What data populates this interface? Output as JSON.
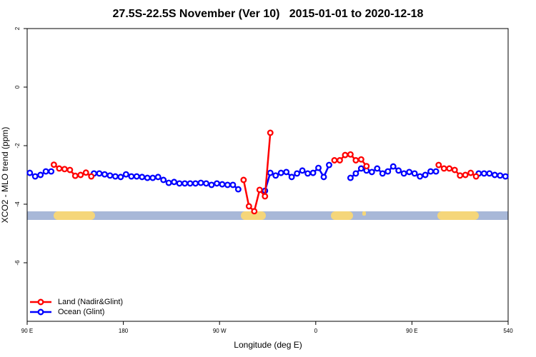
{
  "chart_data": {
    "type": "line",
    "title": "27.5S-22.5S November (Ver 10)   2015-01-01 to 2020-12-18",
    "x_label": "Longitude (deg E)",
    "y_label": "XCO2 - MLO trend (ppm)",
    "xlim": [
      90,
      540
    ],
    "xticks": [
      {
        "value": 90,
        "label": "90 E"
      },
      180,
      {
        "value": 270,
        "label": "90 W"
      },
      {
        "value": 360,
        "label": "0"
      },
      {
        "value": 450,
        "label": "90 E"
      },
      540
    ],
    "ylim": [
      -8,
      2
    ],
    "yticks": [
      -6,
      -4,
      -2,
      0,
      2
    ],
    "legend": "bottom-left",
    "series": [
      {
        "name": "Land (Nadir&Glint)",
        "color": "#ff0000",
        "x": [
          115,
          120,
          125,
          130,
          135,
          140,
          145,
          150,
          155,
          292.5,
          297.5,
          302.5,
          307.5,
          312.5,
          317.5,
          322.5,
          377.5,
          382.5,
          387.5,
          392.5,
          397.5,
          402.5,
          407.5,
          412.5,
          475,
          480,
          485,
          490,
          495,
          500,
          505,
          510
        ],
        "values": [
          -2.65,
          -2.78,
          -2.8,
          -2.83,
          -3.03,
          -3.0,
          -2.92,
          -3.05,
          null,
          -3.17,
          -4.07,
          -4.24,
          -3.51,
          -3.73,
          -1.56,
          null,
          -2.5,
          -2.5,
          -2.32,
          -2.3,
          -2.5,
          -2.47,
          -2.7,
          null,
          -2.66,
          -2.78,
          -2.78,
          -2.83,
          -3.02,
          -3.0,
          -2.93,
          -3.05
        ]
      },
      {
        "name": "Ocean (Glint)",
        "color": "#0000ff",
        "x": [
          92.5,
          97.5,
          102.5,
          107.5,
          112.5,
          117.5,
          152.5,
          157.5,
          162.5,
          167.5,
          172.5,
          177.5,
          182.5,
          187.5,
          192.5,
          197.5,
          202.5,
          207.5,
          212.5,
          217.5,
          222.5,
          227.5,
          232.5,
          237.5,
          242.5,
          247.5,
          252.5,
          257.5,
          262.5,
          267.5,
          272.5,
          277.5,
          282.5,
          287.5,
          292.5,
          312.5,
          317.5,
          322.5,
          327.5,
          332.5,
          337.5,
          342.5,
          347.5,
          352.5,
          357.5,
          362.5,
          367.5,
          372.5,
          377.5,
          392.5,
          397.5,
          402.5,
          407.5,
          412.5,
          417.5,
          422.5,
          427.5,
          432.5,
          437.5,
          442.5,
          447.5,
          452.5,
          457.5,
          462.5,
          467.5,
          472.5,
          477.5,
          512.5,
          517.5,
          522.5,
          527.5,
          532.5,
          537.5
        ],
        "values": [
          -2.93,
          -3.05,
          -3.0,
          -2.88,
          -2.88,
          null,
          -2.95,
          -2.95,
          -2.98,
          -3.02,
          -3.05,
          -3.07,
          -2.98,
          -3.05,
          -3.05,
          -3.07,
          -3.1,
          -3.1,
          -3.07,
          -3.17,
          -3.27,
          -3.24,
          -3.29,
          -3.29,
          -3.29,
          -3.29,
          -3.27,
          -3.29,
          -3.34,
          -3.29,
          -3.32,
          -3.34,
          -3.34,
          -3.49,
          null,
          -3.54,
          -2.93,
          -3.02,
          -2.93,
          -2.9,
          -3.07,
          -2.95,
          -2.85,
          -2.95,
          -2.93,
          -2.76,
          -3.07,
          -2.66,
          null,
          -3.1,
          -2.95,
          -2.78,
          -2.85,
          -2.9,
          -2.78,
          -2.95,
          -2.88,
          -2.71,
          -2.85,
          -2.95,
          -2.9,
          -2.95,
          -3.05,
          -3.0,
          -2.88,
          -2.88,
          null,
          -2.95,
          -2.95,
          -2.95,
          -3.0,
          -3.02,
          -3.05
        ]
      }
    ]
  }
}
